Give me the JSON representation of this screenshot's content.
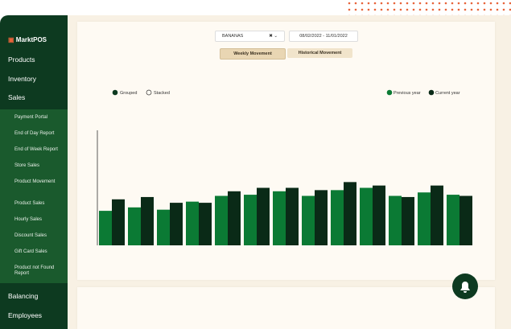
{
  "sidebar": {
    "logo": "MarktPOS",
    "menu": [
      "Products",
      "Inventory",
      "Sales"
    ],
    "submenu": [
      "Payment Portal",
      "End of Day Report",
      "End of Week Report",
      "Store Sales",
      "Product Movement",
      "Product Sales",
      "Hourly Sales",
      "Discount Sales",
      "Gift Card Sales",
      "Product not Found Report"
    ],
    "menu_bottom": [
      "Balancing",
      "Employees"
    ]
  },
  "filters": {
    "product": "BANANAS",
    "date_range": "08/02/2022 - 11/01/2022"
  },
  "tabs": [
    "Weekly Movement",
    "Historical Movement"
  ],
  "chart_data": {
    "type": "bar",
    "mode_options": [
      "Grouped",
      "Stacked"
    ],
    "grouped": true,
    "ylim": [
      0,
      100
    ],
    "series": [
      {
        "name": "Previous year",
        "color": "#0b7a34",
        "values": [
          30,
          33,
          31,
          38,
          43,
          44,
          47,
          43,
          48,
          50,
          43,
          46,
          44
        ]
      },
      {
        "name": "Current year",
        "color": "#0a2a17",
        "values": [
          40,
          42,
          37,
          37,
          47,
          50,
          50,
          48,
          55,
          52,
          42,
          52,
          43
        ]
      }
    ]
  }
}
